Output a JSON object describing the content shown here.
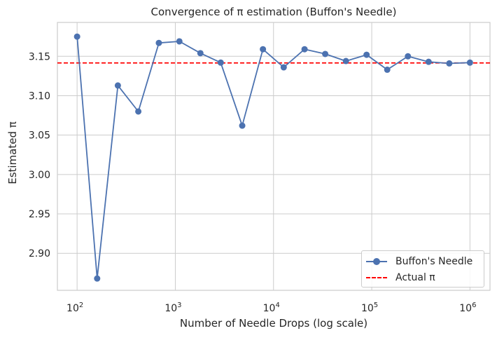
{
  "chart_data": {
    "type": "line",
    "title": "Convergence of π estimation (Buffon's Needle)",
    "xlabel": "Number of Needle Drops (log scale)",
    "ylabel": "Estimated π",
    "xscale": "log",
    "xlim": [
      63,
      1600000
    ],
    "ylim": [
      2.853,
      3.193
    ],
    "grid": true,
    "legend_position": "lower-right",
    "x_ticks": [
      {
        "exp": "2",
        "value": 100
      },
      {
        "exp": "3",
        "value": 1000
      },
      {
        "exp": "4",
        "value": 10000
      },
      {
        "exp": "5",
        "value": 100000
      },
      {
        "exp": "6",
        "value": 1000000
      }
    ],
    "y_ticks": [
      "2.90",
      "2.95",
      "3.00",
      "3.05",
      "3.10",
      "3.15"
    ],
    "series": [
      {
        "name": "Buffon's Needle",
        "color": "#4c72b0",
        "marker": "circle",
        "x": [
          100,
          160,
          260,
          420,
          680,
          1100,
          1800,
          2900,
          4800,
          7800,
          12700,
          20700,
          33600,
          54600,
          88600,
          143800,
          233600,
          379300,
          615800,
          1000000
        ],
        "y": [
          3.175,
          2.868,
          3.113,
          3.08,
          3.167,
          3.169,
          3.154,
          3.142,
          3.062,
          3.159,
          3.136,
          3.159,
          3.153,
          3.144,
          3.152,
          3.133,
          3.15,
          3.143,
          3.141,
          3.142
        ]
      }
    ],
    "reference_lines": [
      {
        "name": "Actual π",
        "y": 3.14159,
        "color": "#ff0000",
        "style": "dashed"
      }
    ]
  },
  "legend": {
    "items": [
      {
        "label": "Buffon's Needle"
      },
      {
        "label": "Actual π"
      }
    ]
  }
}
